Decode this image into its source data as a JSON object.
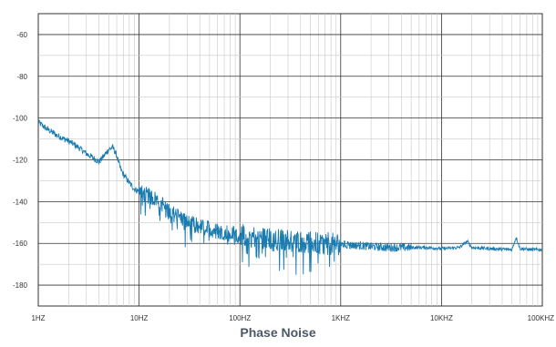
{
  "chart_data": {
    "type": "line",
    "title": "Phase Noise",
    "x_scale": "log",
    "xlim": [
      1,
      100000
    ],
    "ylim": [
      -190,
      -50
    ],
    "grid": true,
    "x_tick_labels": [
      "1HZ",
      "10HZ",
      "100HZ",
      "1KHZ",
      "10KHZ",
      "100KHZ"
    ],
    "y_tick_labels": [
      "-60",
      "-80",
      "-100",
      "-120",
      "-140",
      "-160",
      "-180"
    ],
    "series": [
      {
        "x": [
          1,
          1.2,
          1.5,
          1.8,
          2,
          2.5,
          3,
          3.5,
          4,
          4.5,
          5,
          5.5,
          6,
          6.5,
          7,
          8,
          9,
          10,
          12,
          15,
          18,
          20,
          25,
          30,
          40,
          50,
          60,
          80,
          100,
          150,
          200,
          300,
          400,
          500,
          700,
          1000,
          1500,
          2000,
          3000,
          5000,
          7000,
          10000,
          15000,
          18000,
          20000,
          30000,
          50000,
          55000,
          60000,
          80000,
          100000
        ],
        "y": [
          -102,
          -105,
          -108,
          -110,
          -111,
          -114,
          -117,
          -119,
          -121,
          -118,
          -115,
          -114,
          -118,
          -124,
          -127,
          -131,
          -134,
          -135,
          -137,
          -139,
          -142,
          -145,
          -147,
          -150,
          -152,
          -153,
          -154,
          -155,
          -156,
          -157,
          -158,
          -158.5,
          -159,
          -159.5,
          -160,
          -160.5,
          -161,
          -161.5,
          -162,
          -162,
          -162,
          -162.5,
          -162,
          -159,
          -162,
          -162.5,
          -163,
          -157,
          -162.5,
          -163,
          -163
        ]
      }
    ]
  }
}
